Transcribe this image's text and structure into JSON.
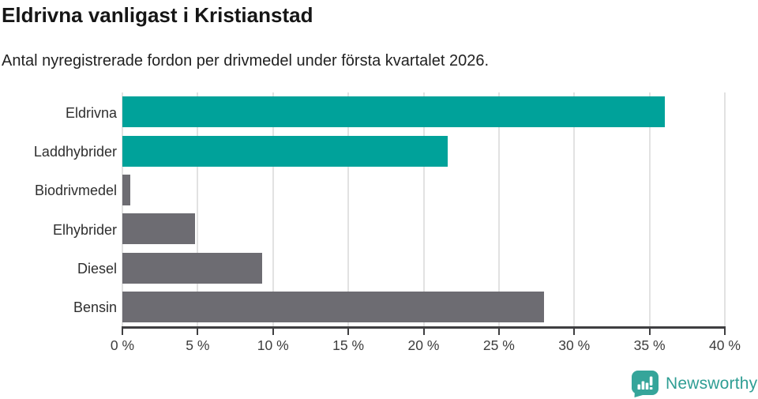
{
  "header": {
    "title": "Eldrivna vanligast i Kristianstad",
    "subtitle": "Antal nyregistrerade fordon per drivmedel under första kvartalet 2026."
  },
  "chart_data": {
    "type": "bar",
    "orientation": "horizontal",
    "title": "Eldrivna vanligast i Kristianstad",
    "subtitle": "Antal nyregistrerade fordon per drivmedel under första kvartalet 2026.",
    "categories": [
      "Eldrivna",
      "Laddhybrider",
      "Biodrivmedel",
      "Elhybrider",
      "Diesel",
      "Bensin"
    ],
    "values": [
      36.0,
      21.6,
      0.5,
      4.8,
      9.3,
      28.0
    ],
    "unit": "%",
    "bar_colors": [
      "#00a29a",
      "#00a29a",
      "#6d6c72",
      "#6d6c72",
      "#6d6c72",
      "#6d6c72"
    ],
    "xlabel": "",
    "ylabel": "",
    "xlim": [
      0,
      40
    ],
    "x_ticks": [
      0,
      5,
      10,
      15,
      20,
      25,
      30,
      35,
      40
    ],
    "x_tick_labels": [
      "0 %",
      "5 %",
      "10 %",
      "15 %",
      "20 %",
      "25 %",
      "30 %",
      "35 %",
      "40 %"
    ],
    "grid": "vertical-on",
    "legend": "none"
  },
  "colors": {
    "accent_teal": "#00a29a",
    "bar_gray": "#6d6c72",
    "gridline": "#e2e2e2",
    "axis": "#3f3f41",
    "brand_teal": "#2f9e94"
  },
  "footer": {
    "brand": "Newsworthy"
  }
}
